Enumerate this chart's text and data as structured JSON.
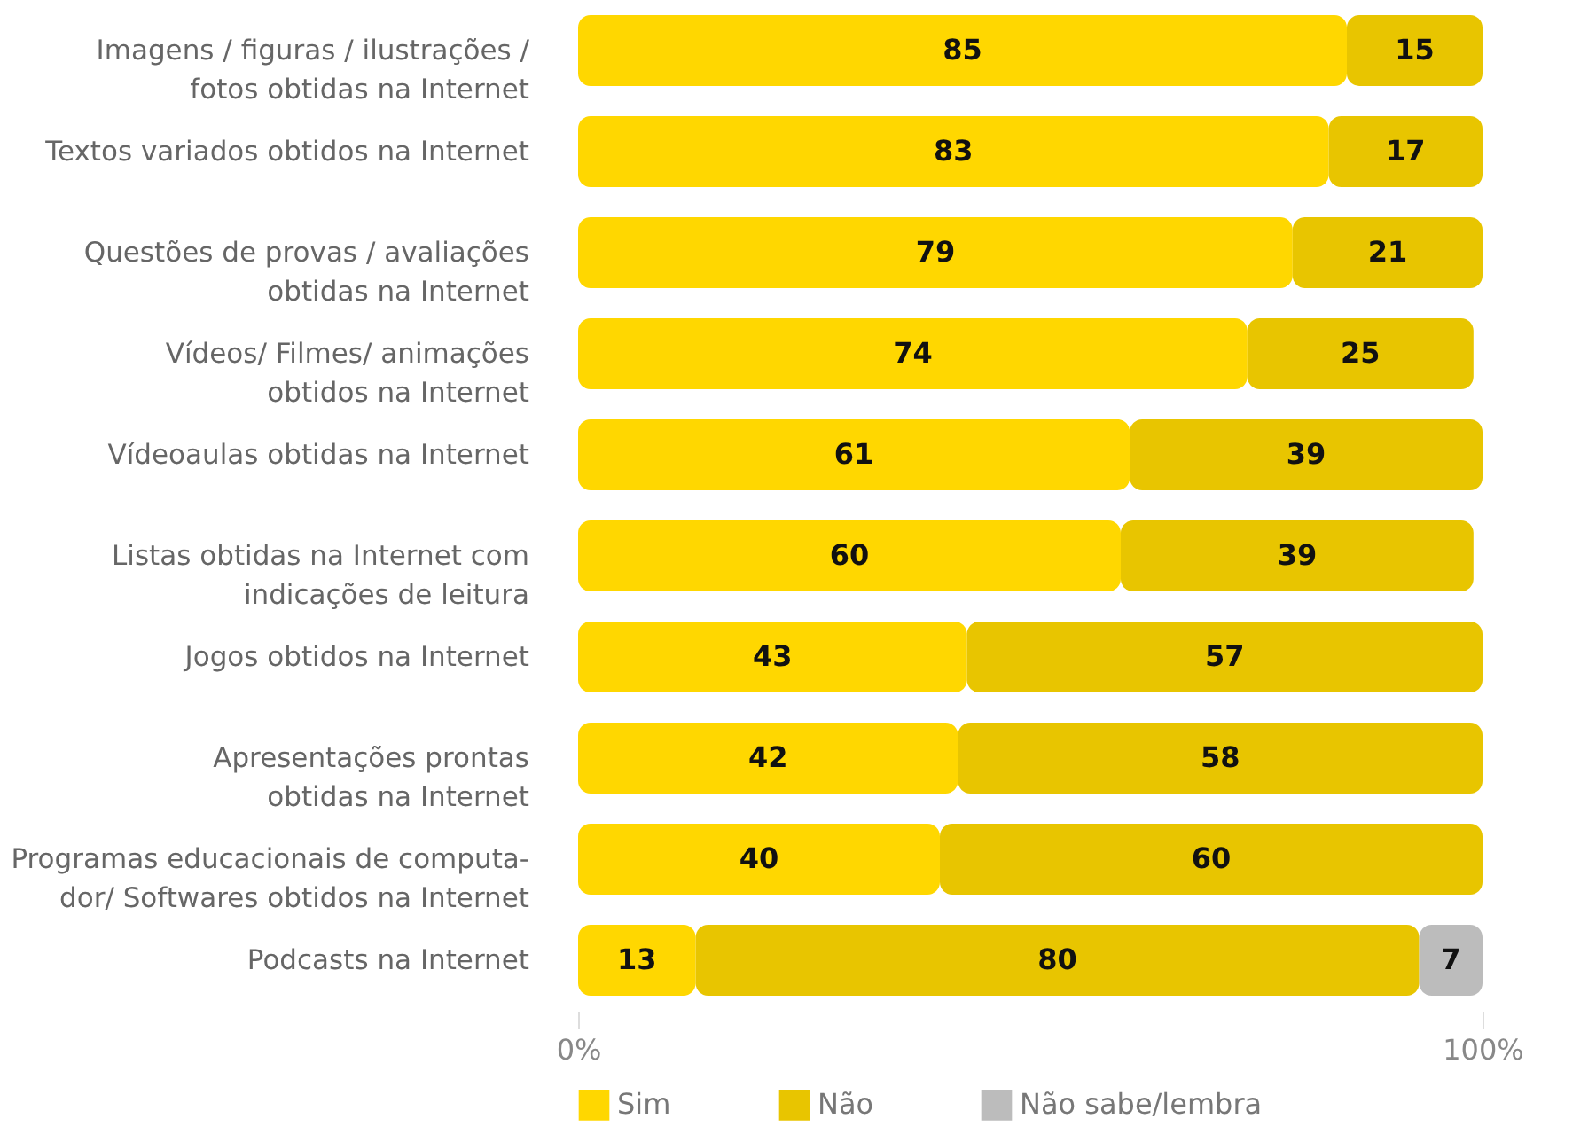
{
  "chart_data": {
    "type": "bar",
    "orientation": "horizontal",
    "stacked": true,
    "data_labels": true,
    "legend": "bottom",
    "grid": false,
    "categories": [
      "Imagens / figuras / ilustrações /\nfotos obtidas na Internet",
      "Textos variados obtidos na Internet",
      "Questões de provas / avaliações\nobtidas na Internet",
      "Vídeos/ Filmes/ animações\nobtidos na Internet",
      "Vídeoaulas obtidas na Internet",
      "Listas obtidas na Internet com\nindicações de leitura",
      "Jogos obtidos na Internet",
      "Apresentações prontas\nobtidas na Internet",
      "Programas educacionais de computa-\ndor/ Softwares obtidos na Internet",
      "Podcasts na Internet"
    ],
    "series": [
      {
        "name": "Sim",
        "color": "#ffd700",
        "values": [
          85,
          83,
          79,
          74,
          61,
          60,
          43,
          42,
          40,
          13
        ]
      },
      {
        "name": "Não",
        "color": "#e8c500",
        "values": [
          15,
          17,
          21,
          25,
          39,
          39,
          57,
          58,
          60,
          80
        ]
      },
      {
        "name": "Não sabe/lembra",
        "color": "#bcbcbc",
        "values": [
          null,
          null,
          null,
          null,
          null,
          null,
          null,
          null,
          null,
          7
        ]
      }
    ],
    "xlim": [
      0,
      100
    ],
    "xticks": [
      {
        "value": 0,
        "label": "0%"
      },
      {
        "value": 100,
        "label": "100%"
      }
    ]
  }
}
